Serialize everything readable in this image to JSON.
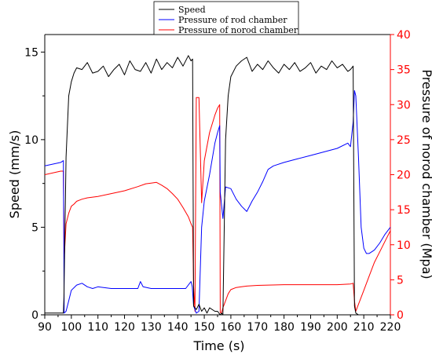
{
  "chart_data": {
    "type": "line",
    "title": "",
    "xlabel": "Time (s)",
    "ylabel_left": "Speed (mm/s)",
    "ylabel_right": "Pressure of norod chamber (Mpa)",
    "xlim": [
      90,
      220
    ],
    "ylim_left": [
      0,
      16
    ],
    "ylim_right": [
      0,
      40
    ],
    "x_ticks": [
      90,
      100,
      110,
      120,
      130,
      140,
      150,
      160,
      170,
      180,
      190,
      200,
      210,
      220
    ],
    "y_ticks_left": [
      0,
      5,
      10,
      15
    ],
    "y_ticks_right": [
      0,
      5,
      10,
      15,
      20,
      25,
      30,
      35,
      40
    ],
    "grid": false,
    "legend_position": "top-center",
    "right_axis_color": "#ff0000",
    "series": [
      {
        "name": "Speed",
        "axis": "left",
        "color": "#000000",
        "x": [
          90,
          96,
          97,
          97.2,
          98,
          99,
          100,
          101,
          102,
          104,
          106,
          108,
          110,
          112,
          114,
          116,
          118,
          120,
          122,
          124,
          126,
          128,
          130,
          132,
          134,
          136,
          138,
          140,
          142,
          144,
          145,
          145.6,
          146,
          147,
          148,
          149,
          150,
          151,
          152,
          154,
          155,
          156,
          156.5,
          157,
          158,
          159,
          160,
          162,
          164,
          166,
          168,
          170,
          172,
          174,
          176,
          178,
          180,
          182,
          184,
          186,
          188,
          190,
          192,
          194,
          196,
          198,
          200,
          202,
          204,
          205,
          206,
          206.5,
          207,
          208,
          209,
          210,
          212,
          215,
          220
        ],
        "values": [
          0.1,
          0.1,
          0.1,
          1.0,
          9.0,
          12.5,
          13.3,
          13.8,
          14.1,
          14.0,
          14.4,
          13.8,
          13.9,
          14.2,
          13.6,
          14.0,
          14.3,
          13.7,
          14.5,
          14.0,
          13.9,
          14.4,
          13.8,
          14.6,
          14.0,
          14.4,
          14.1,
          14.7,
          14.2,
          14.8,
          14.5,
          14.6,
          0.5,
          0.3,
          0.6,
          0.2,
          0.4,
          0.1,
          0.4,
          0.2,
          0.2,
          0.0,
          0.1,
          0.0,
          10.0,
          12.5,
          13.6,
          14.2,
          14.5,
          14.7,
          13.9,
          14.3,
          14.0,
          14.5,
          14.1,
          13.8,
          14.3,
          14.0,
          14.4,
          13.9,
          14.1,
          14.4,
          13.8,
          14.2,
          14.0,
          14.5,
          14.1,
          14.3,
          13.9,
          14.0,
          14.2,
          0.5,
          0.1,
          0.0,
          0.0,
          0.0,
          0.0,
          0.0,
          0.0
        ]
      },
      {
        "name": "Pressure of rod chamber",
        "axis": "left",
        "color": "#0000ff",
        "x": [
          90,
          96,
          97,
          97.3,
          98,
          99,
          100,
          102,
          104,
          106,
          108,
          110,
          115,
          120,
          125,
          126,
          127,
          130,
          135,
          140,
          143,
          145,
          145.5,
          146,
          147,
          148,
          149,
          150,
          152,
          154,
          155,
          155.8,
          156,
          157,
          158,
          160,
          162,
          164,
          166,
          168,
          170,
          172,
          174,
          176,
          180,
          185,
          190,
          195,
          200,
          204,
          205,
          206,
          206.5,
          207,
          208,
          209,
          210,
          211,
          212,
          214,
          216,
          218,
          220
        ],
        "values": [
          8.5,
          8.7,
          8.8,
          0.1,
          0.2,
          0.8,
          1.4,
          1.7,
          1.8,
          1.6,
          1.5,
          1.6,
          1.5,
          1.5,
          1.5,
          1.9,
          1.6,
          1.5,
          1.5,
          1.5,
          1.5,
          1.9,
          1.6,
          0.5,
          0.1,
          0.2,
          5.0,
          6.5,
          8.0,
          9.8,
          10.4,
          10.8,
          7.0,
          5.5,
          7.3,
          7.2,
          6.6,
          6.2,
          5.9,
          6.5,
          7.0,
          7.6,
          8.3,
          8.5,
          8.7,
          8.9,
          9.1,
          9.3,
          9.5,
          9.8,
          9.6,
          11.0,
          12.8,
          12.5,
          9.0,
          5.0,
          3.8,
          3.5,
          3.5,
          3.7,
          4.1,
          4.6,
          5.0
        ]
      },
      {
        "name": "Pressure of norod chamber",
        "axis": "right",
        "color": "#ff0000",
        "x": [
          90,
          96,
          97,
          97.3,
          98,
          99,
          100,
          101,
          102,
          104,
          106,
          108,
          110,
          115,
          120,
          125,
          128,
          130,
          132,
          134,
          136,
          138,
          140,
          142,
          144,
          145,
          145.6,
          146,
          146.5,
          147,
          147.5,
          148,
          149,
          150,
          152,
          154,
          155,
          155.8,
          156,
          156.5,
          157,
          158,
          159,
          160,
          162,
          164,
          166,
          170,
          180,
          190,
          200,
          205,
          206,
          206.5,
          207,
          208,
          210,
          212,
          214,
          216,
          218,
          220
        ],
        "values": [
          20.0,
          20.5,
          20.5,
          8.0,
          13.0,
          14.5,
          15.5,
          15.8,
          16.2,
          16.5,
          16.7,
          16.8,
          16.9,
          17.3,
          17.7,
          18.3,
          18.7,
          18.8,
          18.9,
          18.5,
          18.0,
          17.3,
          16.5,
          15.3,
          14.0,
          13.0,
          12.5,
          4.0,
          0.5,
          31.0,
          31.0,
          31.0,
          16.0,
          22.0,
          26.0,
          28.5,
          29.5,
          30.0,
          0.3,
          0.3,
          1.0,
          2.0,
          3.0,
          3.6,
          3.9,
          4.0,
          4.1,
          4.2,
          4.3,
          4.3,
          4.3,
          4.4,
          4.5,
          2.0,
          0.5,
          1.5,
          3.5,
          5.5,
          7.5,
          9.0,
          10.5,
          12.0
        ]
      }
    ]
  }
}
